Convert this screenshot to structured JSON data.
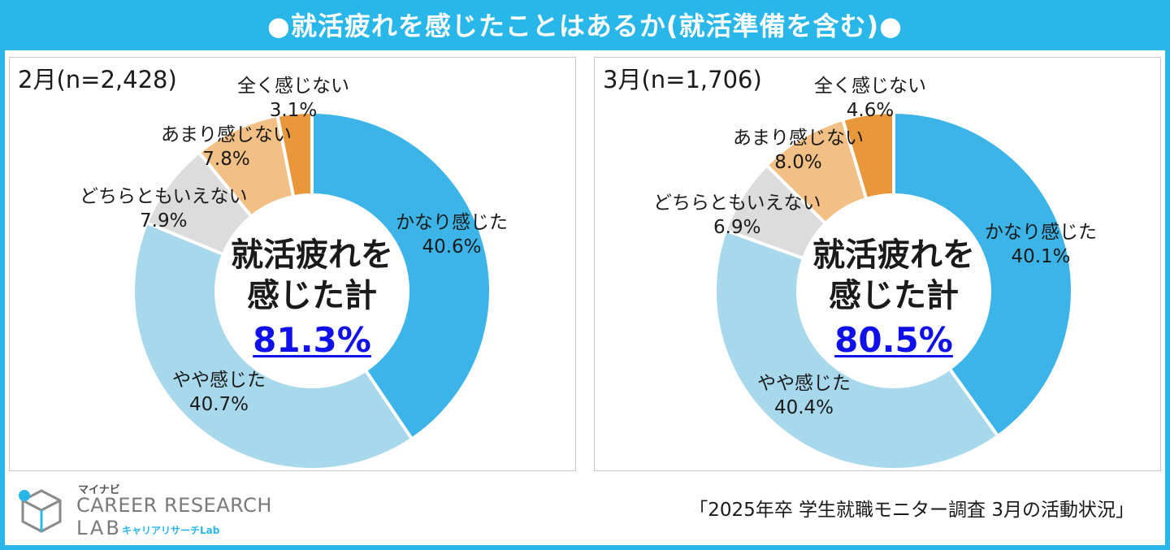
{
  "title": "●就活疲れを感じたことはあるか(就活準備を含む)●",
  "colors": {
    "very": "#3DB4E8",
    "somewhat": "#A8D8EC",
    "neither": "#DCDCDC",
    "not_much": "#F2C084",
    "not_at_all": "#E8973A",
    "total": "#1010E8",
    "frame": "#29B7E9"
  },
  "chart_data": [
    {
      "type": "pie",
      "panel_label": "2月(n=2,428)",
      "center_line1": "就活疲れを",
      "center_line2": "感じた計",
      "center_total": "81.3%",
      "series": [
        {
          "name": "かなり感じた",
          "value": 40.6,
          "label": "40.6%"
        },
        {
          "name": "やや感じた",
          "value": 40.7,
          "label": "40.7%"
        },
        {
          "name": "どちらともいえない",
          "value": 7.9,
          "label": "7.9%"
        },
        {
          "name": "あまり感じない",
          "value": 7.8,
          "label": "7.8%"
        },
        {
          "name": "全く感じない",
          "value": 3.1,
          "label": "3.1%"
        }
      ]
    },
    {
      "type": "pie",
      "panel_label": "3月(n=1,706)",
      "center_line1": "就活疲れを",
      "center_line2": "感じた計",
      "center_total": "80.5%",
      "series": [
        {
          "name": "かなり感じた",
          "value": 40.1,
          "label": "40.1%"
        },
        {
          "name": "やや感じた",
          "value": 40.4,
          "label": "40.4%"
        },
        {
          "name": "どちらともいえない",
          "value": 6.9,
          "label": "6.9%"
        },
        {
          "name": "あまり感じない",
          "value": 8.0,
          "label": "8.0%"
        },
        {
          "name": "全く感じない",
          "value": 4.6,
          "label": "4.6%"
        }
      ]
    }
  ],
  "footer": {
    "source": "「2025年卒 学生就職モニター調査 3月の活動状況」",
    "logo_small": "マイナビ",
    "logo_main": "CAREER RESEARCH",
    "logo_lab": "LAB",
    "logo_sub": "キャリアリサーチLab"
  }
}
